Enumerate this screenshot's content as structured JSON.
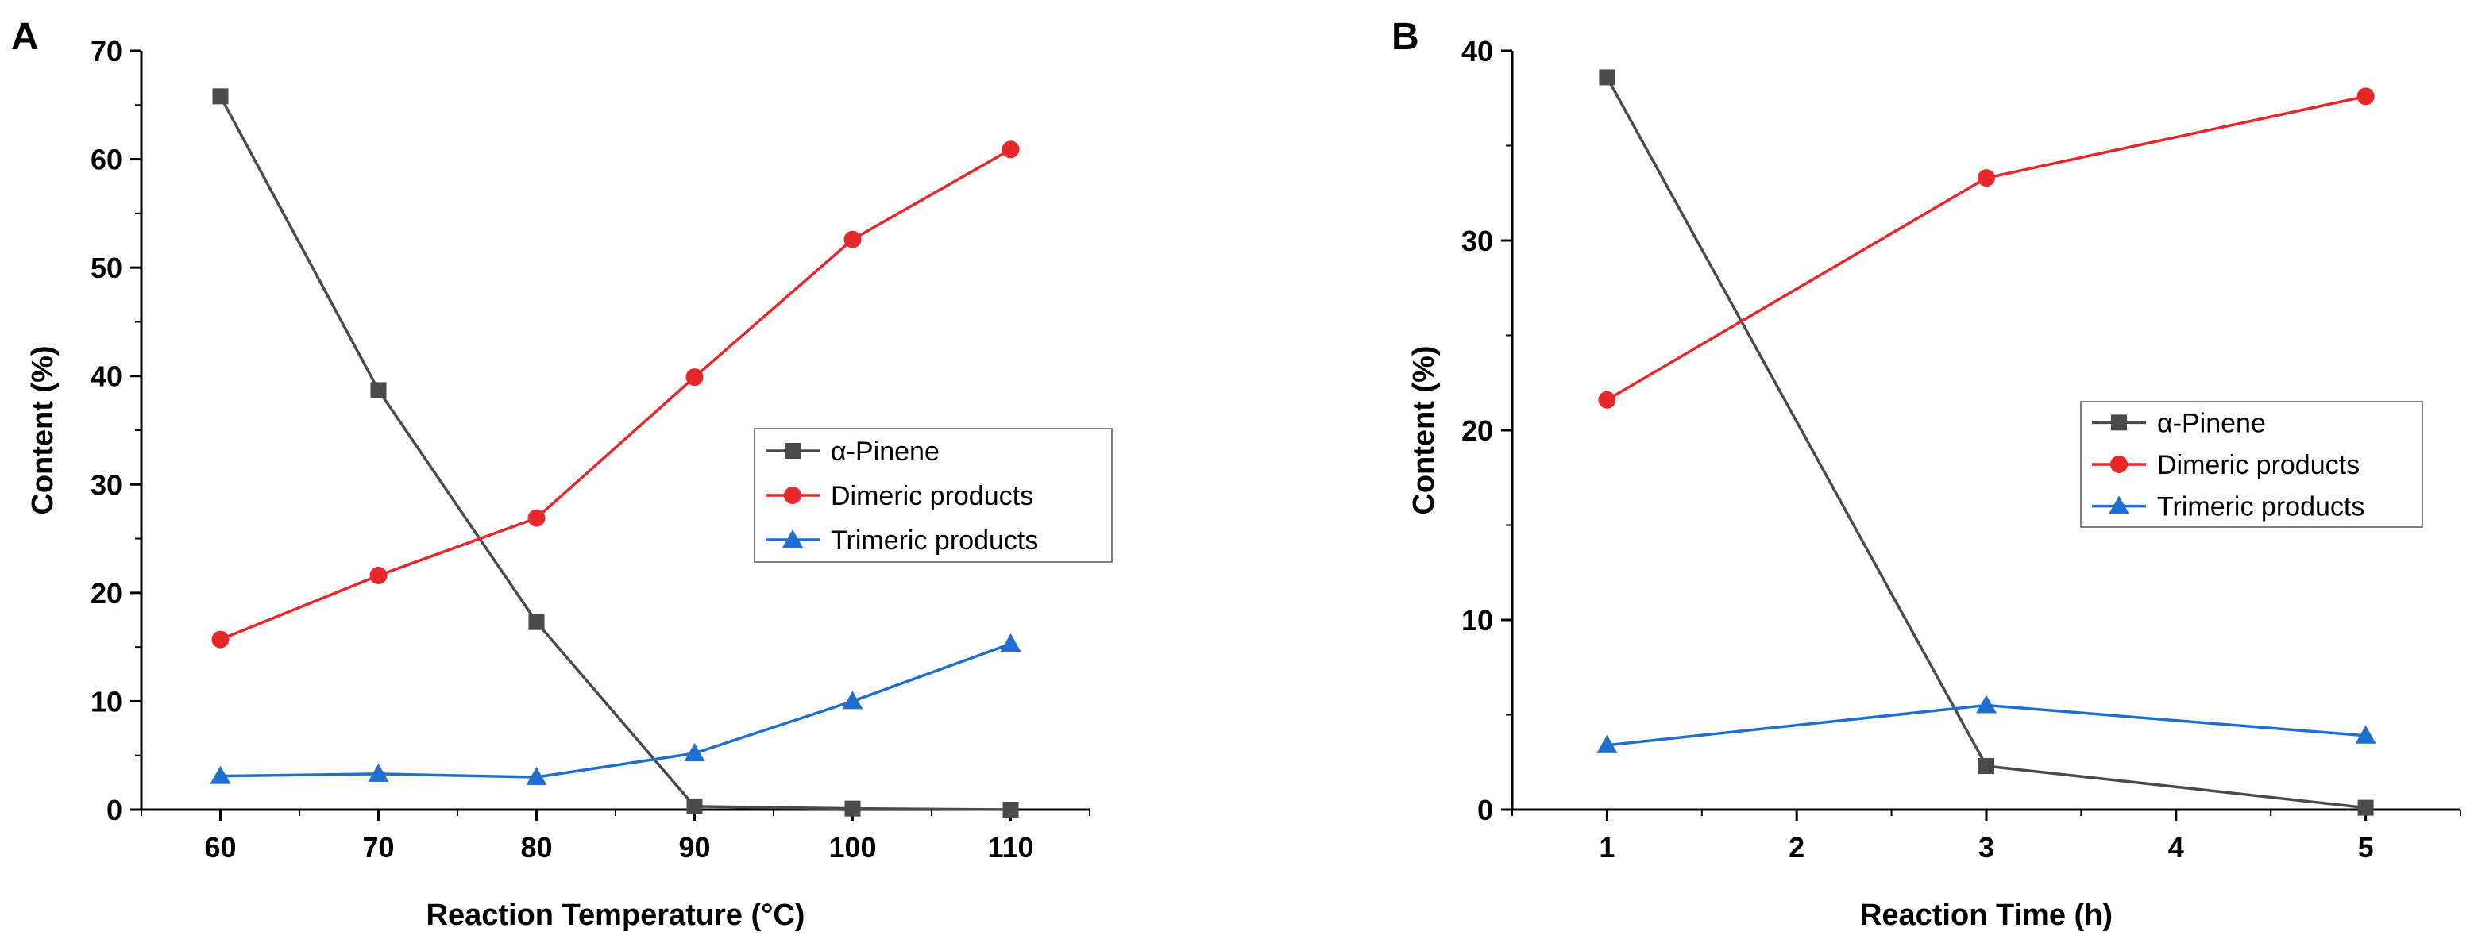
{
  "chart_data": [
    {
      "type": "line",
      "panel_label": "A",
      "title": "",
      "xlabel": "Reaction Temperature (°C)",
      "ylabel": "Content (%)",
      "xlim": [
        55,
        115
      ],
      "ylim": [
        0,
        70
      ],
      "xticks": [
        60,
        70,
        80,
        90,
        100,
        110
      ],
      "yticks": [
        0,
        10,
        20,
        30,
        40,
        50,
        60,
        70
      ],
      "legend_position": "center-right",
      "x": [
        60,
        70,
        80,
        90,
        100,
        110
      ],
      "series": [
        {
          "name": "α-Pinene",
          "color": "#4a4a4a",
          "marker": "square",
          "values": [
            65.8,
            38.7,
            17.3,
            0.3,
            0.1,
            0.0
          ]
        },
        {
          "name": "Dimeric products",
          "color": "#e8272a",
          "marker": "circle",
          "values": [
            15.7,
            21.6,
            26.9,
            39.9,
            52.6,
            60.9
          ]
        },
        {
          "name": "Trimeric products",
          "color": "#1f6fd1",
          "marker": "triangle",
          "values": [
            3.1,
            3.3,
            3.0,
            5.2,
            10.0,
            15.3
          ]
        }
      ]
    },
    {
      "type": "line",
      "panel_label": "B",
      "title": "",
      "xlabel": "Reaction Time (h)",
      "ylabel": "Content (%)",
      "xlim": [
        0.5,
        5.5
      ],
      "ylim": [
        0,
        40
      ],
      "xticks": [
        1,
        2,
        3,
        4,
        5
      ],
      "yticks": [
        0,
        10,
        20,
        30,
        40
      ],
      "legend_position": "center-right",
      "x": [
        1,
        3,
        5
      ],
      "series": [
        {
          "name": "α-Pinene",
          "color": "#4a4a4a",
          "marker": "square",
          "values": [
            38.6,
            2.3,
            0.1
          ]
        },
        {
          "name": "Dimeric products",
          "color": "#e8272a",
          "marker": "circle",
          "values": [
            21.6,
            33.3,
            37.6
          ]
        },
        {
          "name": "Trimeric products",
          "color": "#1f6fd1",
          "marker": "triangle",
          "values": [
            3.4,
            5.5,
            3.9
          ]
        }
      ]
    }
  ]
}
